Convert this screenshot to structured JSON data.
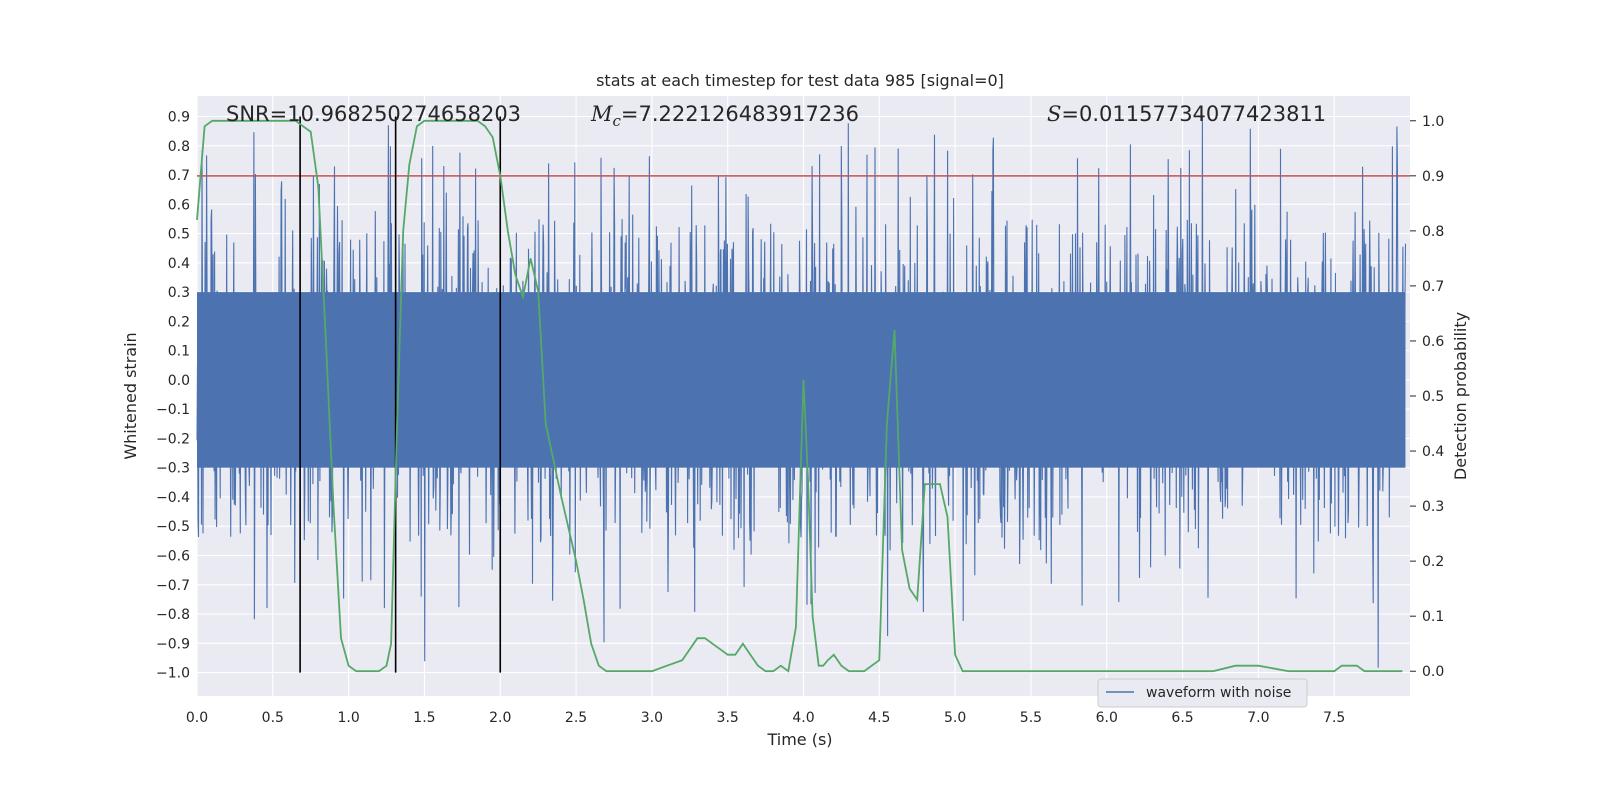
{
  "chart_data": {
    "type": "line",
    "title": "stats at each timestep for test data 985 [signal=0]",
    "xlabel": "Time (s)",
    "ylabel": "Whitened strain",
    "y2label": "Detection probability",
    "xlim": [
      0.0,
      8.0
    ],
    "ylim": [
      -1.08,
      0.97
    ],
    "y2lim": [
      -0.045,
      1.045
    ],
    "xticks": [
      "0.0",
      "0.5",
      "1.0",
      "1.5",
      "2.0",
      "2.5",
      "3.0",
      "3.5",
      "4.0",
      "4.5",
      "5.0",
      "5.5",
      "6.0",
      "6.5",
      "7.0",
      "7.5"
    ],
    "yticks": [
      "-1.0",
      "-0.9",
      "-0.8",
      "-0.7",
      "-0.6",
      "-0.5",
      "-0.4",
      "-0.3",
      "-0.2",
      "-0.1",
      "0.0",
      "0.1",
      "0.2",
      "0.3",
      "0.4",
      "0.5",
      "0.6",
      "0.7",
      "0.8",
      "0.9"
    ],
    "y2ticks": [
      "0.0",
      "0.1",
      "0.2",
      "0.3",
      "0.4",
      "0.5",
      "0.6",
      "0.7",
      "0.8",
      "0.9",
      "1.0"
    ],
    "grid": true,
    "legend": {
      "entries": [
        "waveform with noise"
      ],
      "placement": "lower-right"
    },
    "stats": {
      "snr": "SNR=10.968250274658203",
      "mc_symbol": "M",
      "mc_subscript": "c",
      "mc_value": "=7.222126483917236",
      "s_symbol": "S",
      "s_value": "=0.011577340774238 11"
    },
    "threshold": {
      "axis": "y2",
      "value": 0.9,
      "color": "#c44e52"
    },
    "vlines": {
      "x": [
        0.68,
        1.31,
        2.0
      ],
      "ymin": -1.0,
      "ymax": 0.9,
      "color": "#000000"
    },
    "series": [
      {
        "name": "waveform with noise",
        "axis": "y",
        "color": "#4c72b0",
        "kind": "dense-noise",
        "n_points": 2400,
        "core_range": [
          -0.3,
          0.3
        ],
        "peak_range": [
          -1.0,
          0.9
        ]
      },
      {
        "name": "detection probability",
        "axis": "y2",
        "color": "#55a868",
        "x": [
          0.0,
          0.05,
          0.1,
          0.2,
          0.3,
          0.4,
          0.5,
          0.6,
          0.65,
          0.7,
          0.75,
          0.8,
          0.85,
          0.9,
          0.95,
          1.0,
          1.05,
          1.1,
          1.15,
          1.2,
          1.25,
          1.28,
          1.32,
          1.36,
          1.4,
          1.45,
          1.5,
          1.6,
          1.7,
          1.8,
          1.85,
          1.9,
          1.95,
          2.0,
          2.05,
          2.1,
          2.15,
          2.2,
          2.25,
          2.3,
          2.4,
          2.5,
          2.55,
          2.6,
          2.65,
          2.7,
          2.8,
          2.9,
          3.0,
          3.1,
          3.2,
          3.25,
          3.3,
          3.35,
          3.4,
          3.45,
          3.5,
          3.55,
          3.6,
          3.65,
          3.7,
          3.75,
          3.8,
          3.85,
          3.9,
          3.95,
          4.0,
          4.03,
          4.06,
          4.1,
          4.13,
          4.16,
          4.2,
          4.25,
          4.3,
          4.35,
          4.4,
          4.45,
          4.5,
          4.55,
          4.6,
          4.65,
          4.7,
          4.75,
          4.8,
          4.85,
          4.9,
          4.95,
          5.0,
          5.05,
          5.1,
          5.2,
          5.3,
          5.5,
          5.7,
          5.9,
          6.1,
          6.3,
          6.5,
          6.7,
          6.85,
          6.9,
          6.95,
          7.0,
          7.2,
          7.4,
          7.5,
          7.55,
          7.6,
          7.65,
          7.7,
          7.8,
          7.9,
          7.95
        ],
        "values": [
          0.82,
          0.99,
          1.0,
          1.0,
          1.0,
          1.0,
          1.0,
          1.0,
          1.0,
          0.99,
          0.98,
          0.88,
          0.6,
          0.3,
          0.06,
          0.01,
          0.0,
          0.0,
          0.0,
          0.0,
          0.01,
          0.05,
          0.45,
          0.8,
          0.92,
          0.99,
          1.0,
          1.0,
          1.0,
          1.0,
          1.0,
          0.99,
          0.97,
          0.9,
          0.8,
          0.72,
          0.68,
          0.75,
          0.69,
          0.45,
          0.32,
          0.2,
          0.13,
          0.05,
          0.01,
          0.0,
          0.0,
          0.0,
          0.0,
          0.01,
          0.02,
          0.04,
          0.06,
          0.06,
          0.05,
          0.04,
          0.03,
          0.03,
          0.05,
          0.03,
          0.01,
          0.0,
          0.0,
          0.01,
          0.0,
          0.08,
          0.53,
          0.35,
          0.1,
          0.01,
          0.01,
          0.02,
          0.03,
          0.01,
          0.0,
          0.0,
          0.0,
          0.01,
          0.02,
          0.45,
          0.62,
          0.22,
          0.15,
          0.13,
          0.34,
          0.34,
          0.34,
          0.28,
          0.03,
          0.0,
          0.0,
          0.0,
          0.0,
          0.0,
          0.0,
          0.0,
          0.0,
          0.0,
          0.0,
          0.0,
          0.01,
          0.01,
          0.01,
          0.01,
          0.0,
          0.0,
          0.0,
          0.01,
          0.01,
          0.01,
          0.0,
          0.0,
          0.0,
          0.0
        ]
      }
    ]
  }
}
